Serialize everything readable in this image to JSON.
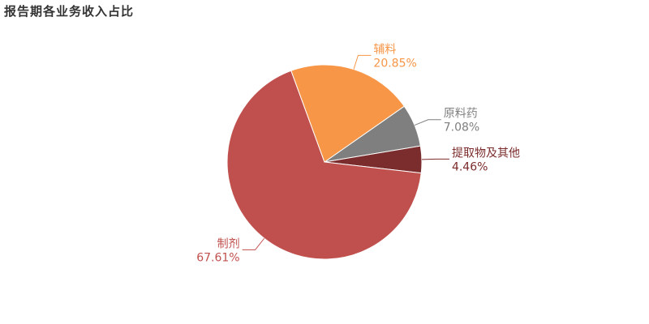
{
  "chart_data": {
    "type": "pie",
    "title": "报告期各业务收入占比",
    "categories": [
      "原料药",
      "提取物及其他",
      "制剂",
      "辅料"
    ],
    "values": [
      7.08,
      4.46,
      67.61,
      20.85
    ],
    "value_labels": [
      "7.08%",
      "4.46%",
      "67.61%",
      "20.85%"
    ],
    "colors": [
      "#7f7f7f",
      "#7b2c2c",
      "#c0504d",
      "#f79646"
    ],
    "legend": "none"
  }
}
